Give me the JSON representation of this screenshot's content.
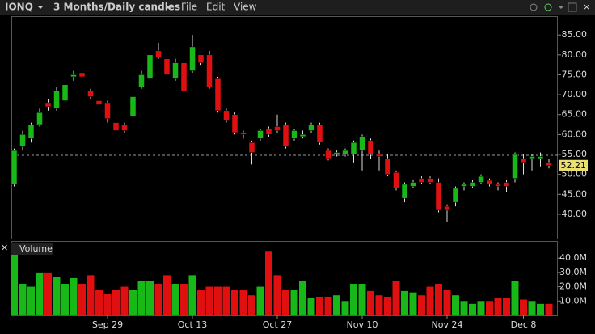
{
  "toolbar": {
    "symbol": "IONQ",
    "period": "3 Months/Daily candles",
    "menus": [
      "File",
      "Edit",
      "View"
    ]
  },
  "chart_data": {
    "type": "candlestick",
    "categories": [
      null,
      null,
      null,
      null,
      null,
      null,
      null,
      null,
      null,
      null,
      null,
      "Sep 29",
      null,
      null,
      null,
      null,
      null,
      null,
      null,
      null,
      null,
      "Oct 13",
      null,
      null,
      null,
      null,
      null,
      null,
      null,
      null,
      null,
      "Oct 27",
      null,
      null,
      null,
      null,
      null,
      null,
      null,
      null,
      null,
      "Nov 10",
      null,
      null,
      null,
      null,
      null,
      null,
      null,
      null,
      null,
      "Nov 24",
      null,
      null,
      null,
      null,
      null,
      null,
      null,
      null,
      "Dec 8",
      null,
      null,
      null
    ],
    "open": [
      47.5,
      57,
      59,
      62.5,
      68,
      66.5,
      68.5,
      74.5,
      75.5,
      71,
      68.5,
      68,
      63,
      62.5,
      64.5,
      72,
      74,
      81,
      79,
      74,
      78,
      76,
      80,
      80,
      74,
      66,
      65,
      60.5,
      58,
      59,
      61.5,
      62,
      62.5,
      59,
      59.5,
      61,
      62.5,
      56,
      55,
      55,
      55,
      56,
      58.5,
      55,
      54,
      50.5,
      44,
      47,
      49,
      49,
      48,
      42,
      43,
      47,
      47,
      48,
      48.5,
      47.5,
      48,
      49,
      54,
      54,
      54,
      53
    ],
    "high": [
      56.5,
      61,
      63,
      66.5,
      69,
      72,
      74,
      76,
      76,
      71.5,
      69,
      68.5,
      63.5,
      63,
      70,
      76,
      81,
      83,
      80,
      79,
      80,
      85,
      80,
      81,
      74.5,
      66.5,
      65.5,
      61,
      58.5,
      61.5,
      62,
      65,
      63,
      61.5,
      61,
      63,
      63,
      56.5,
      56,
      56.5,
      58.5,
      60,
      59,
      56,
      55,
      51,
      48,
      48.5,
      49.5,
      49.5,
      49,
      42.5,
      47,
      48,
      48.5,
      50,
      49,
      48,
      48.5,
      55.5,
      55,
      55,
      55.5,
      54
    ],
    "low": [
      47,
      56,
      58,
      62,
      66,
      66,
      68,
      73.5,
      72,
      69,
      66.5,
      63,
      60.5,
      60.5,
      64,
      71.5,
      73.5,
      79,
      74,
      73.5,
      70.5,
      75.5,
      77.5,
      71.5,
      65.5,
      63,
      60,
      59,
      52.5,
      58.5,
      59.5,
      60.5,
      56.5,
      58.5,
      59,
      60.5,
      57.5,
      53.5,
      54.5,
      54.5,
      53,
      51,
      54,
      51,
      49.5,
      46,
      43,
      46.5,
      47.5,
      47.5,
      40.5,
      38,
      42,
      46,
      46.5,
      47.5,
      47,
      46,
      45.5,
      48,
      50,
      51,
      52,
      51.5
    ],
    "close": [
      56,
      60,
      62.5,
      65.5,
      67,
      71,
      72.5,
      75,
      74.5,
      69.5,
      67.5,
      64,
      61,
      61,
      69.5,
      75,
      80,
      79.5,
      75,
      78,
      71,
      82,
      78,
      72,
      66,
      63.5,
      60.5,
      60,
      55.5,
      61,
      60,
      61,
      57,
      61,
      60,
      62.5,
      58,
      54,
      55.5,
      56,
      58,
      59.5,
      55,
      54.5,
      50,
      46.5,
      47.5,
      48,
      48,
      48,
      41,
      41,
      46.5,
      47.5,
      48,
      49.5,
      47.5,
      47,
      47,
      55,
      53,
      54.5,
      54.5,
      52.21
    ],
    "colors": {
      "up": "#18b818",
      "down": "#e01010"
    },
    "ylim": [
      33.9,
      89.7
    ],
    "yticks": [
      {
        "value": 40,
        "label": "40.00"
      },
      {
        "value": 45,
        "label": "45.00"
      },
      {
        "value": 50,
        "label": "50.00"
      },
      {
        "value": 55,
        "label": "55.00"
      },
      {
        "value": 60,
        "label": "60.00"
      },
      {
        "value": 65,
        "label": "65.00"
      },
      {
        "value": 70,
        "label": "70.00"
      },
      {
        "value": 75,
        "label": "75.00"
      },
      {
        "value": 80,
        "label": "80.00"
      },
      {
        "value": 85,
        "label": "85.00"
      }
    ],
    "reference_line": 54.8,
    "last_price": 52.21,
    "volume": {
      "title": "Volume",
      "values": [
        47,
        22,
        20,
        30,
        30,
        27,
        22,
        26,
        22,
        28,
        18,
        15,
        18,
        20,
        18,
        24,
        24,
        22,
        28,
        22,
        22,
        28,
        18,
        20,
        20,
        20,
        18,
        18,
        14,
        20,
        45,
        28,
        18,
        18,
        24,
        12,
        13,
        13,
        14,
        10,
        22,
        22,
        17,
        14,
        13,
        24,
        17,
        16,
        14,
        20,
        22,
        18,
        14,
        10,
        8,
        10,
        10,
        12,
        12,
        24,
        11,
        10,
        8,
        8
      ],
      "ylim": [
        0,
        50.8
      ],
      "yticks": [
        {
          "value": 10,
          "label": "10.0M"
        },
        {
          "value": 20,
          "label": "20.0M"
        },
        {
          "value": 30,
          "label": "30.0M"
        },
        {
          "value": 40,
          "label": "40.0M"
        }
      ]
    }
  }
}
